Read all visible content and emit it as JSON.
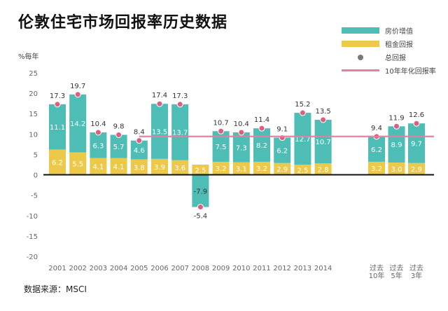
{
  "title": "伦敦住宅市场回报率历史数据",
  "source": "数据来源：MSCI",
  "chart_data": {
    "type": "bar",
    "stacked": true,
    "unit_label": "%每年",
    "ylim": [
      -20,
      25
    ],
    "y_ticks": [
      25,
      20,
      15,
      10,
      5,
      0,
      -5,
      -10,
      -15,
      -20
    ],
    "categories": [
      "2001",
      "2002",
      "2003",
      "2004",
      "2005",
      "2006",
      "2007",
      "2008",
      "2009",
      "2010",
      "2011",
      "2012",
      "2013",
      "2014",
      "过去\n10年",
      "过去\n5年",
      "过去\n3年"
    ],
    "series": [
      {
        "name": "房价增值",
        "color": "#4dbdb6",
        "values": [
          11.1,
          14.2,
          6.3,
          5.7,
          4.6,
          13.5,
          13.7,
          -7.9,
          7.5,
          7.3,
          8.2,
          6.2,
          12.7,
          10.7,
          6.2,
          8.9,
          9.7
        ]
      },
      {
        "name": "租金回报",
        "color": "#edc94a",
        "values": [
          6.2,
          5.5,
          4.1,
          4.1,
          3.8,
          3.9,
          3.6,
          2.5,
          3.2,
          3.1,
          3.2,
          2.9,
          2.5,
          2.8,
          3.2,
          3.0,
          2.9
        ]
      },
      {
        "name": "总回报",
        "type": "point",
        "color": "#d9607f",
        "values": [
          17.3,
          19.7,
          10.4,
          9.8,
          8.4,
          17.4,
          17.3,
          -5.4,
          10.7,
          10.4,
          11.4,
          9.1,
          15.2,
          13.5,
          9.4,
          11.9,
          12.6
        ]
      }
    ],
    "reference_line": {
      "name": "10年年化回报率",
      "value": 9.4,
      "color": "#e57ea0"
    },
    "legend": {
      "position": "top-right",
      "items": [
        {
          "label": "房价增值",
          "kind": "rect",
          "color": "#4dbdb6"
        },
        {
          "label": "租金回报",
          "kind": "rect",
          "color": "#edc94a"
        },
        {
          "label": "总回报",
          "kind": "dot",
          "color": "#7a7a7a"
        },
        {
          "label": "10年年化回报率",
          "kind": "line",
          "color": "#e57ea0"
        }
      ]
    }
  }
}
